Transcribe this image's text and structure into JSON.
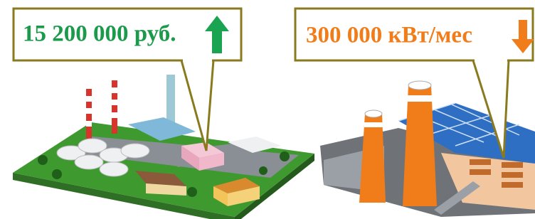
{
  "callouts": [
    {
      "text": "15 200 000 руб."
    },
    {
      "text": "300 000 кВт/мес"
    }
  ]
}
